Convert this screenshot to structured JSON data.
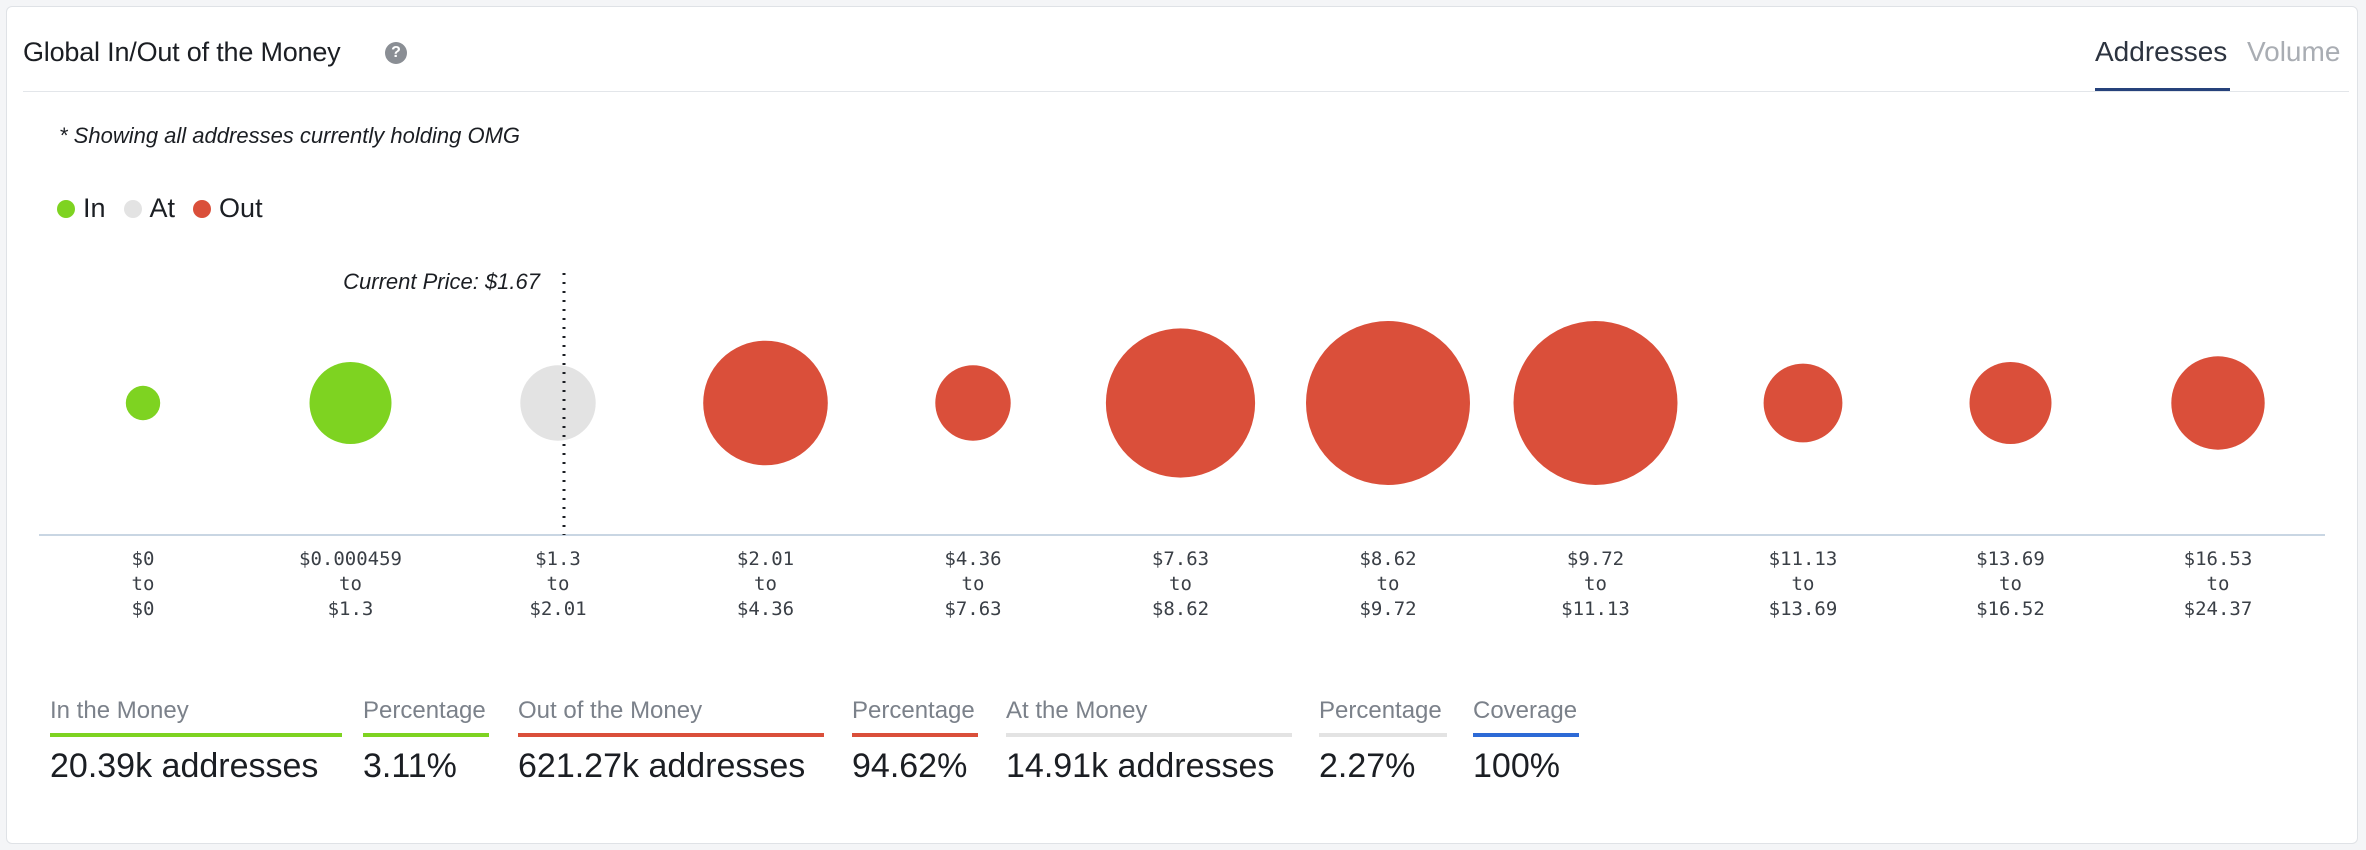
{
  "header": {
    "title": "Global In/Out of the Money",
    "help_icon": "help-icon",
    "help_glyph": "?",
    "tabs": [
      {
        "label": "Addresses",
        "active": true
      },
      {
        "label": "Volume",
        "active": false
      }
    ]
  },
  "note": "* Showing all addresses currently holding OMG",
  "legend": [
    {
      "label": "In",
      "color": "#7ed321"
    },
    {
      "label": "At",
      "color": "#e3e3e3"
    },
    {
      "label": "Out",
      "color": "#da4f3a"
    }
  ],
  "chart_data": {
    "type": "bubble",
    "title": "Global In/Out of the Money",
    "current_price_label": "Current Price: $1.67",
    "current_price_after_index": 2,
    "colors": {
      "in": "#7ed321",
      "at": "#e3e3e3",
      "out": "#da4f3a"
    },
    "ranges": [
      {
        "from": "$0",
        "to": "$0",
        "status": "in",
        "relative_size": 0.21
      },
      {
        "from": "$0.000459",
        "to": "$1.3",
        "status": "in",
        "relative_size": 0.5
      },
      {
        "from": "$1.3",
        "to": "$2.01",
        "status": "at",
        "relative_size": 0.46
      },
      {
        "from": "$2.01",
        "to": "$4.36",
        "status": "out",
        "relative_size": 0.76
      },
      {
        "from": "$4.36",
        "to": "$7.63",
        "status": "out",
        "relative_size": 0.46
      },
      {
        "from": "$7.63",
        "to": "$8.62",
        "status": "out",
        "relative_size": 0.91
      },
      {
        "from": "$8.62",
        "to": "$9.72",
        "status": "out",
        "relative_size": 1.0
      },
      {
        "from": "$9.72",
        "to": "$11.13",
        "status": "out",
        "relative_size": 1.0
      },
      {
        "from": "$11.13",
        "to": "$13.69",
        "status": "out",
        "relative_size": 0.48
      },
      {
        "from": "$13.69",
        "to": "$16.52",
        "status": "out",
        "relative_size": 0.5
      },
      {
        "from": "$16.53",
        "to": "$24.37",
        "status": "out",
        "relative_size": 0.57
      }
    ],
    "to_word": "to"
  },
  "summary": [
    {
      "label": "In the Money",
      "value": "20.39k addresses",
      "color": "#7ed321"
    },
    {
      "label": "Percentage",
      "value": "3.11%",
      "color": "#7ed321"
    },
    {
      "label": "Out of the Money",
      "value": "621.27k addresses",
      "color": "#da4f3a"
    },
    {
      "label": "Percentage",
      "value": "94.62%",
      "color": "#da4f3a"
    },
    {
      "label": "At the Money",
      "value": "14.91k addresses",
      "color": "#e3e3e3"
    },
    {
      "label": "Percentage",
      "value": "2.27%",
      "color": "#e3e3e3"
    },
    {
      "label": "Coverage",
      "value": "100%",
      "color": "#2d6ad6"
    }
  ]
}
